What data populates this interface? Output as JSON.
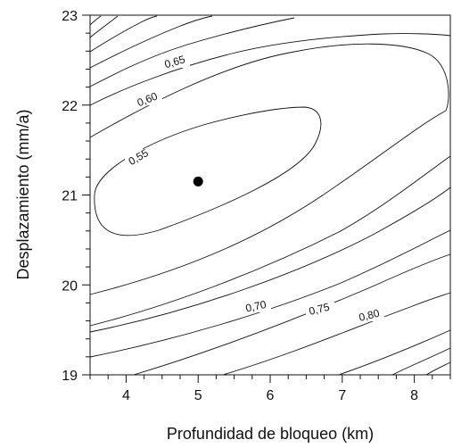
{
  "chart_data": {
    "type": "contour",
    "xlabel": "Profundidad de bloqueo (km)",
    "ylabel": "Desplazamiento (mm/a)",
    "xlim": [
      3.5,
      8.5
    ],
    "ylim": [
      19,
      23
    ],
    "x_ticks": [
      "4",
      "5",
      "6",
      "7",
      "8"
    ],
    "y_ticks": [
      "19",
      "20",
      "21",
      "22",
      "23"
    ],
    "grid": false,
    "contour_levels": [
      "0,55",
      "0,60",
      "0,65",
      "0,70",
      "0,75",
      "0,80"
    ],
    "minimum_point": {
      "x": 5.0,
      "y": 21.15
    },
    "line_color": "#111111",
    "marker_color": "#000000"
  }
}
